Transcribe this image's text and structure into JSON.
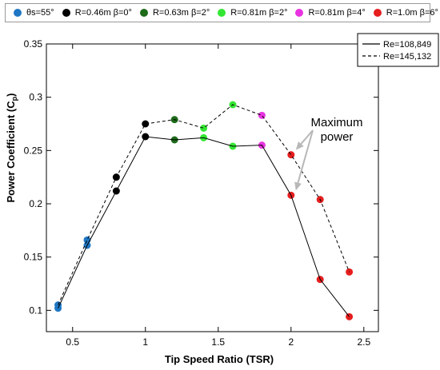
{
  "legend_top": [
    {
      "label": "θs=55°",
      "color": "#1f77c4"
    },
    {
      "label": "R=0.46m β=0°",
      "color": "#000000"
    },
    {
      "label": "R=0.63m β=2°",
      "color": "#1e6b1a"
    },
    {
      "label": "R=0.81m β=2°",
      "color": "#33e633"
    },
    {
      "label": "R=0.81m β=4°",
      "color": "#e833e0"
    },
    {
      "label": "R=1.0m β=6°",
      "color": "#e61e1e"
    }
  ],
  "chart_data": {
    "type": "line",
    "xlabel": "Tip Speed Ratio (TSR)",
    "ylabel": "Power Coefficient (C",
    "ylabel_sub": "p",
    "ylabel_close": ")",
    "xlim": [
      0.32,
      2.6
    ],
    "ylim": [
      0.08,
      0.35
    ],
    "xticks": [
      0.5,
      1,
      1.5,
      2,
      2.5
    ],
    "xtick_labels": [
      "0.5",
      "1",
      "1.5",
      "2",
      "2.5"
    ],
    "yticks": [
      0.1,
      0.15,
      0.2,
      0.25,
      0.3,
      0.35
    ],
    "ytick_labels": [
      "0.1",
      "0.15",
      "0.2",
      "0.25",
      "0.3",
      "0.35"
    ],
    "legend_position": "top-right",
    "series": [
      {
        "name": "Re=108,849",
        "line_style": "solid",
        "points": [
          {
            "x": 0.4,
            "y": 0.102,
            "color": "#1f77c4"
          },
          {
            "x": 0.6,
            "y": 0.161,
            "color": "#1f77c4"
          },
          {
            "x": 0.8,
            "y": 0.212,
            "color": "#000000"
          },
          {
            "x": 1.0,
            "y": 0.263,
            "color": "#000000"
          },
          {
            "x": 1.2,
            "y": 0.26,
            "color": "#1e6b1a"
          },
          {
            "x": 1.4,
            "y": 0.262,
            "color": "#33e633"
          },
          {
            "x": 1.6,
            "y": 0.254,
            "color": "#33e633"
          },
          {
            "x": 1.8,
            "y": 0.255,
            "color": "#e833e0"
          },
          {
            "x": 2.0,
            "y": 0.208,
            "color": "#e61e1e"
          },
          {
            "x": 2.2,
            "y": 0.129,
            "color": "#e61e1e"
          },
          {
            "x": 2.4,
            "y": 0.094,
            "color": "#e61e1e"
          }
        ]
      },
      {
        "name": "Re=145,132",
        "line_style": "dashed",
        "points": [
          {
            "x": 0.4,
            "y": 0.105,
            "color": "#1f77c4"
          },
          {
            "x": 0.6,
            "y": 0.166,
            "color": "#1f77c4"
          },
          {
            "x": 0.8,
            "y": 0.225,
            "color": "#000000"
          },
          {
            "x": 1.0,
            "y": 0.275,
            "color": "#000000"
          },
          {
            "x": 1.2,
            "y": 0.279,
            "color": "#1e6b1a"
          },
          {
            "x": 1.4,
            "y": 0.271,
            "color": "#33e633"
          },
          {
            "x": 1.6,
            "y": 0.293,
            "color": "#33e633"
          },
          {
            "x": 1.8,
            "y": 0.283,
            "color": "#e833e0"
          },
          {
            "x": 2.0,
            "y": 0.246,
            "color": "#e61e1e"
          },
          {
            "x": 2.2,
            "y": 0.204,
            "color": "#e61e1e"
          },
          {
            "x": 2.4,
            "y": 0.136,
            "color": "#e61e1e"
          }
        ]
      }
    ],
    "annotation": {
      "line1": "Maximum",
      "line2": "power",
      "arrow_targets": [
        {
          "x": 2.0,
          "y": 0.246
        },
        {
          "x": 2.0,
          "y": 0.208
        }
      ],
      "arrow_color": "#b8b8b8"
    }
  }
}
